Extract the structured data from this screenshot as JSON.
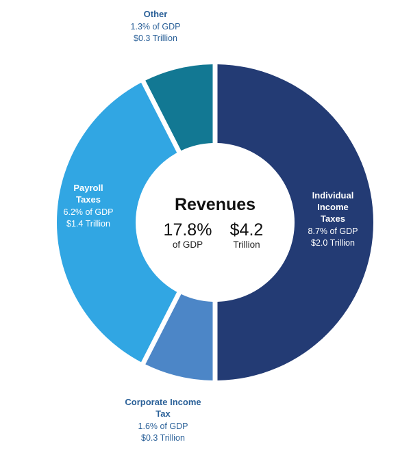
{
  "chart_data": {
    "type": "pie",
    "categories": [
      "Individual Income Taxes",
      "Corporate Income Tax",
      "Payroll Taxes",
      "Other"
    ],
    "values": [
      2.0,
      0.3,
      1.4,
      0.3
    ],
    "pct_gdp": [
      8.7,
      1.6,
      6.2,
      1.3
    ],
    "slices": [
      {
        "name_lines": [
          "Individual",
          "Income",
          "Taxes"
        ],
        "pct_line": "8.7% of GDP",
        "amount_line": "$2.0 Trillion",
        "color": "#233b74",
        "label_color": "#ffffff"
      },
      {
        "name_lines": [
          "Corporate Income",
          "Tax"
        ],
        "pct_line": "1.6% of GDP",
        "amount_line": "$0.3 Trillion",
        "color": "#4c86c7",
        "label_color": "#2a6098"
      },
      {
        "name_lines": [
          "Payroll",
          "Taxes"
        ],
        "pct_line": "6.2% of GDP",
        "amount_line": "$1.4 Trillion",
        "color": "#31a6e3",
        "label_color": "#ffffff"
      },
      {
        "name_lines": [
          "Other"
        ],
        "pct_line": "1.3% of GDP",
        "amount_line": "$0.3 Trillion",
        "color": "#127893",
        "label_color": "#2a6098"
      }
    ],
    "center": {
      "title": "Revenues",
      "pct_value": "17.8%",
      "pct_caption": "of GDP",
      "amount_value": "$4.2",
      "amount_caption": "Trillion"
    }
  }
}
